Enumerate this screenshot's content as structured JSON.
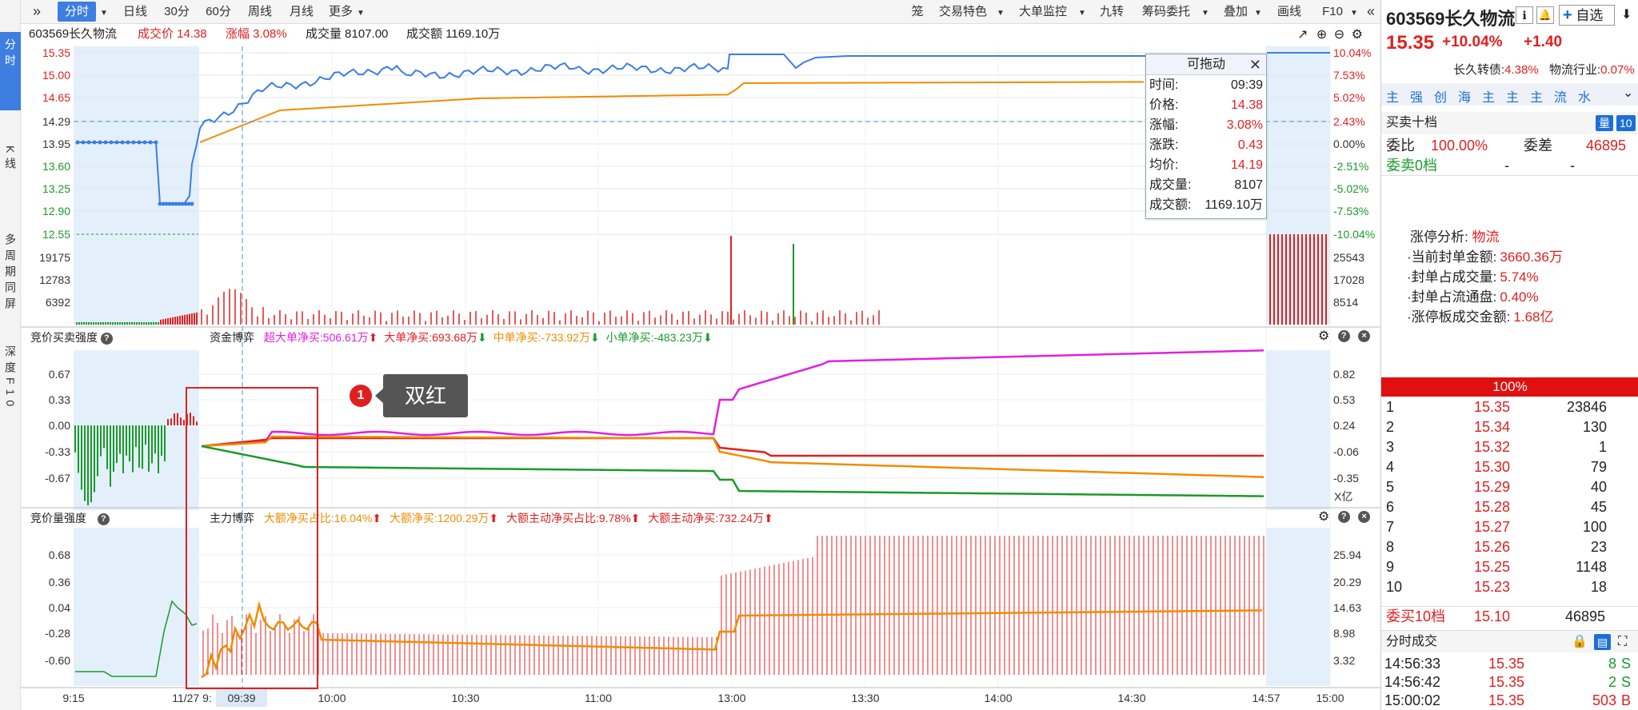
{
  "leftnav": {
    "items": [
      {
        "label": "分时"
      },
      {
        "label": "K线"
      },
      {
        "label": "多周期同屏"
      },
      {
        "label": "深度F10"
      }
    ]
  },
  "toolbar": {
    "expand_icon": "»",
    "left": [
      "分时",
      "日线",
      "30分",
      "60分",
      "周线",
      "月线",
      "更多"
    ],
    "right": [
      "笼",
      "交易特色",
      "大单监控",
      "九转",
      "筹码委托",
      "叠加",
      "画线",
      "F10"
    ],
    "collapse_icon": "«"
  },
  "stock": {
    "code_name": "603569长久物流",
    "trade_price_label": "成交价 14.38",
    "change_pct_label": "涨幅 3.08%",
    "volume_label": "成交量 8107.00",
    "amount_label": "成交额 1169.10万"
  },
  "price_axis": {
    "left": [
      "15.35",
      "15.00",
      "14.65",
      "14.29",
      "13.95",
      "13.60",
      "13.25",
      "12.90",
      "12.55"
    ],
    "right": [
      "10.04%",
      "7.53%",
      "5.02%",
      "2.43%",
      "0.00%",
      "-2.51%",
      "-5.02%",
      "-7.53%",
      "-10.04%"
    ]
  },
  "volume_axis": {
    "left": [
      "19175",
      "12783",
      "6392"
    ],
    "right": [
      "25543",
      "17028",
      "8514"
    ]
  },
  "panel2": {
    "title": "竞价买卖强度",
    "game_label": "资金博弈",
    "super_large": "超大单净买:506.61万",
    "large": "大单净买:693.68万",
    "medium": "中单净买:-733.92万",
    "small": "小单净买:-483.23万",
    "left_axis": [
      "0.67",
      "0.33",
      "0.00",
      "-0.33",
      "-0.67"
    ],
    "right_axis": [
      "0.82",
      "0.53",
      "0.24",
      "-0.06",
      "-0.35"
    ],
    "unit": "X亿"
  },
  "panel3": {
    "title": "竞价量强度",
    "game_label": "主力博弈",
    "big_ratio": "大额净买占比:16.04%",
    "big_net": "大额净买:1200.29万",
    "big_active_ratio": "大额主动净买占比:9.78%",
    "big_active_net": "大额主动净买:732.24万",
    "left_axis": [
      "0.68",
      "0.36",
      "0.04",
      "-0.28",
      "-0.60"
    ],
    "right_axis": [
      "25.94",
      "20.29",
      "14.63",
      "8.98",
      "3.32"
    ]
  },
  "time_axis": [
    "9:15",
    "11/27 9:",
    "09:39",
    "10:00",
    "10:30",
    "11:00",
    "13:00",
    "13:30",
    "14:00",
    "14:30",
    "14:57",
    "15:00"
  ],
  "floatbox": {
    "title": "可拖动",
    "rows": [
      {
        "k": "时间:",
        "v": "09:39"
      },
      {
        "k": "价格:",
        "v": "14.38"
      },
      {
        "k": "涨幅:",
        "v": "3.08%"
      },
      {
        "k": "涨跌:",
        "v": "0.43"
      },
      {
        "k": "均价:",
        "v": "14.19"
      },
      {
        "k": "成交量:",
        "v": "8107"
      },
      {
        "k": "成交额:",
        "v": "1169.10万"
      }
    ]
  },
  "annotation": {
    "number": "1",
    "text": "双红"
  },
  "right": {
    "code_name": "603569长久物流",
    "add_fav": "自选",
    "price": "15.35",
    "pct": "+10.04%",
    "chg": "+1.40",
    "convertible_label": "长久转债:",
    "convertible_val": "4.38%",
    "industry_label": "物流行业:",
    "industry_val": "0.07%",
    "tabs": [
      "主",
      "强",
      "创",
      "海",
      "主",
      "主",
      "主",
      "流",
      "水"
    ],
    "book_title": "买卖十档",
    "book_btn": "量",
    "book_btn2": "10",
    "wb_label": "委比",
    "wb_val": "100.00%",
    "wc_label": "委差",
    "wc_val": "46895",
    "sell0": "委卖0档",
    "sell0_a": "-",
    "sell0_b": "-",
    "limit": {
      "title": "涨停分析:",
      "title_val": "物流",
      "rows": [
        {
          "k": "·当前封单金额:",
          "v": "3660.36万"
        },
        {
          "k": "·封单占成交量:",
          "v": "5.74%"
        },
        {
          "k": "·封单占流通盘:",
          "v": "0.40%"
        },
        {
          "k": "·涨停板成交金额:",
          "v": "1.68亿"
        }
      ]
    },
    "ratio_bar": "100%",
    "buys": [
      {
        "n": "1",
        "p": "15.35",
        "q": "23846"
      },
      {
        "n": "2",
        "p": "15.34",
        "q": "130"
      },
      {
        "n": "3",
        "p": "15.32",
        "q": "1"
      },
      {
        "n": "4",
        "p": "15.30",
        "q": "79"
      },
      {
        "n": "5",
        "p": "15.29",
        "q": "40"
      },
      {
        "n": "6",
        "p": "15.28",
        "q": "45"
      },
      {
        "n": "7",
        "p": "15.27",
        "q": "100"
      },
      {
        "n": "8",
        "p": "15.26",
        "q": "23"
      },
      {
        "n": "9",
        "p": "15.25",
        "q": "1148"
      },
      {
        "n": "10",
        "p": "15.23",
        "q": "18"
      }
    ],
    "buy10_label": "委买10档",
    "buy10_p": "15.10",
    "buy10_q": "46895",
    "ticks_title": "分时成交",
    "ticks": [
      {
        "t": "14:56:33",
        "p": "15.35",
        "q": "8",
        "s": "S"
      },
      {
        "t": "14:56:42",
        "p": "15.35",
        "q": "2",
        "s": "S"
      },
      {
        "t": "15:00:02",
        "p": "15.35",
        "q": "503",
        "s": "B"
      }
    ]
  },
  "colors": {
    "price_line": "#3d7ee0",
    "avg_line": "#f08c00",
    "up": "#e02020",
    "down": "#1a9a2a",
    "magenta": "#e020e0",
    "auction_bg": "#e3f0fb"
  }
}
